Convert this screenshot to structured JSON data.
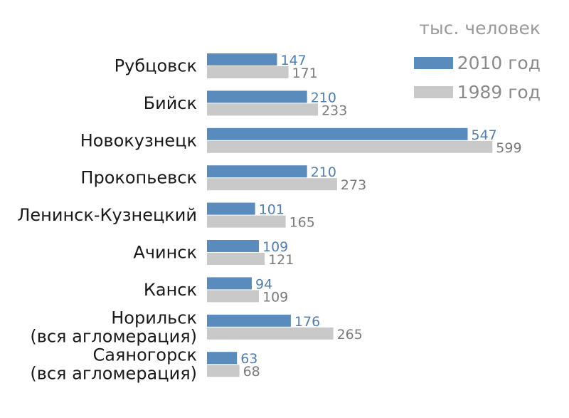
{
  "chart_data": {
    "type": "bar",
    "orientation": "horizontal",
    "units": "тыс. человек",
    "categories": [
      [
        "Рубцовск"
      ],
      [
        "Бийск"
      ],
      [
        "Новокузнецк"
      ],
      [
        "Прокопьевск"
      ],
      [
        "Ленинск-Кузнецкий"
      ],
      [
        "Ачинск"
      ],
      [
        "Канск"
      ],
      [
        "Норильск",
        "(вся агломерация)"
      ],
      [
        "Саяногорск",
        "(вся агломерация)"
      ]
    ],
    "series": [
      {
        "name": "2010 год",
        "color": "#5a8bbd",
        "label_color": "#4f7fb3",
        "values": [
          147,
          210,
          547,
          210,
          101,
          109,
          94,
          176,
          63
        ]
      },
      {
        "name": "1989 год",
        "color": "#c9c9c9",
        "label_color": "#7a7a7a",
        "values": [
          171,
          233,
          599,
          273,
          165,
          121,
          109,
          265,
          68
        ]
      }
    ],
    "legend_position": "top-right",
    "grid": false
  }
}
